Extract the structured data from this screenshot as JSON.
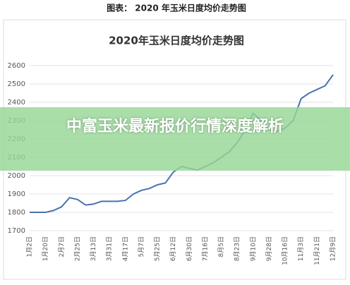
{
  "header": {
    "caption": "图表： 2020 年玉米日度均价走势图"
  },
  "banner": {
    "text": "中富玉米最新报价行情深度解析"
  },
  "chart_data": {
    "type": "line",
    "title": "2020年玉米日度均价走势图",
    "categories": [
      "1月2日",
      null,
      "1月20日",
      null,
      "2月7日",
      null,
      "2月25日",
      null,
      "3月13日",
      null,
      "3月31日",
      null,
      "4月17日",
      null,
      "5月7日",
      null,
      "5月25日",
      null,
      "6月12日",
      null,
      "6月30日",
      null,
      "7月16日",
      null,
      "8月5日",
      null,
      "8月23日",
      null,
      "9月10日",
      null,
      "9月28日",
      null,
      "10月16日",
      null,
      "11月3日",
      null,
      "11月21日",
      null,
      "12月9日"
    ],
    "series": [
      {
        "name": "玉米日度均价",
        "color": "#4a72b0",
        "values": [
          1800,
          1800,
          1800,
          1810,
          1830,
          1880,
          1870,
          1840,
          1845,
          1860,
          1860,
          1860,
          1865,
          1900,
          1920,
          1930,
          1950,
          1960,
          2020,
          2050,
          2040,
          2030,
          2050,
          2070,
          2100,
          2130,
          2180,
          2250,
          2340,
          2300,
          2250,
          2240,
          2260,
          2300,
          2420,
          2450,
          2470,
          2490,
          2550
        ]
      }
    ],
    "ylim": [
      1700,
      2600
    ],
    "yticks": [
      1700,
      1800,
      1900,
      2000,
      2100,
      2200,
      2300,
      2400,
      2500,
      2600
    ],
    "grid": true
  }
}
